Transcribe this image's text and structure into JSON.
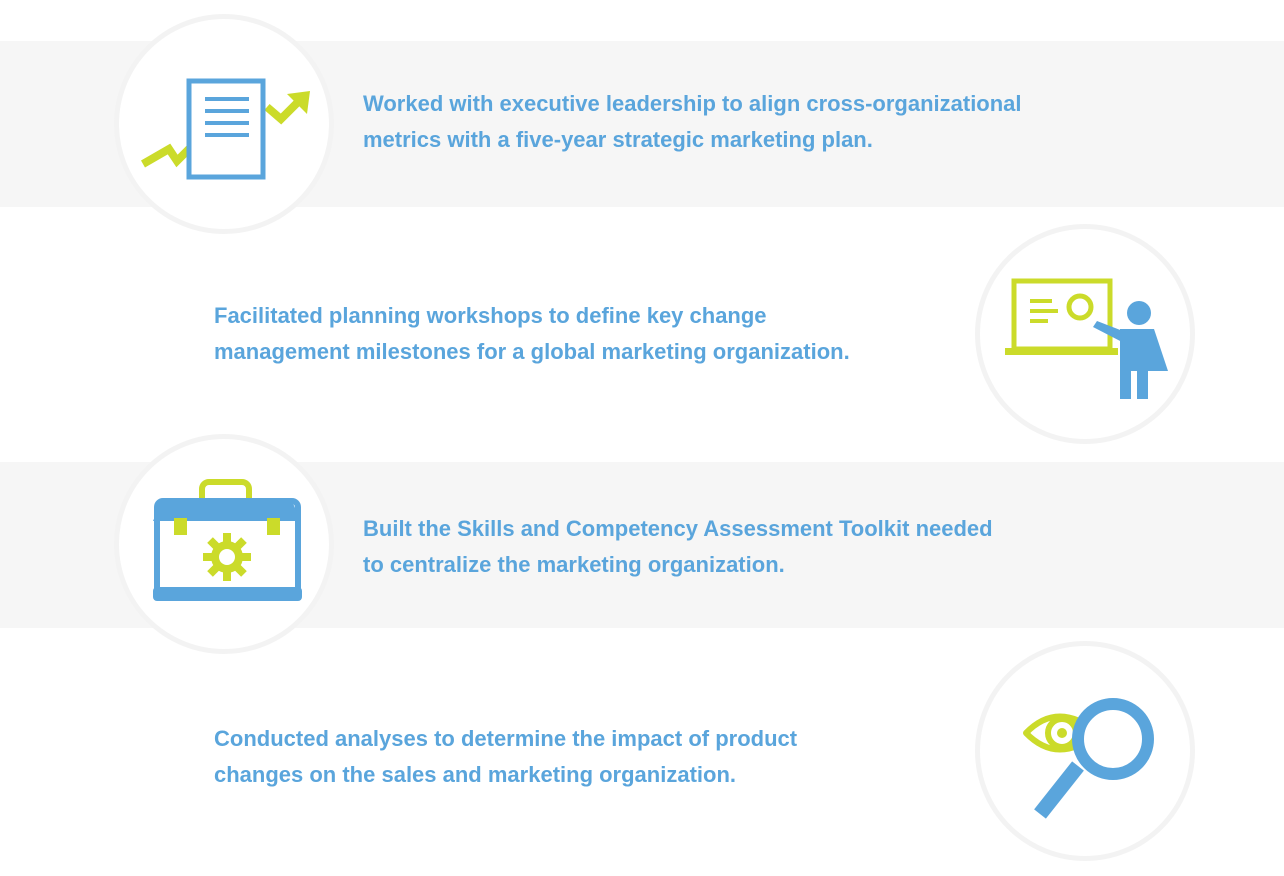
{
  "colors": {
    "blue": "#5aa5dc",
    "green": "#cbdb2a",
    "band": "#f6f6f6",
    "circle_border": "#f3f3f3"
  },
  "items": [
    {
      "icon": "document-trend-icon",
      "line1": "Worked with executive leadership to align cross-organizational",
      "line2": "metrics with a five-year strategic marketing plan."
    },
    {
      "icon": "presenter-whiteboard-icon",
      "line1": "Facilitated planning workshops to define key change",
      "line2": "management milestones for a global marketing organization."
    },
    {
      "icon": "toolbox-gear-icon",
      "line1": "Built the Skills and Competency Assessment Toolkit needed",
      "line2": "to centralize the marketing organization."
    },
    {
      "icon": "magnifier-eye-icon",
      "line1": "Conducted analyses to determine the impact of product",
      "line2": "changes on the sales and marketing organization."
    }
  ]
}
